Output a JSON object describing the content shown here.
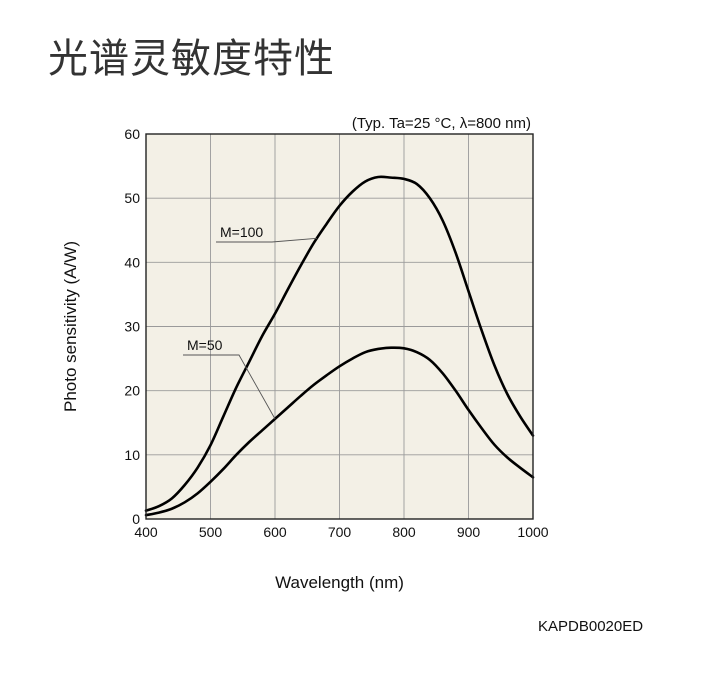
{
  "page": {
    "title": "光谱灵敏度特性",
    "doc_code": "KAPDB0020ED"
  },
  "chart_data": {
    "type": "line",
    "title": "",
    "condition_note": "(Typ. Ta=25 °C, λ=800 nm)",
    "xlabel": "Wavelength (nm)",
    "ylabel": "Photo sensitivity (A/W)",
    "xlim": [
      400,
      1000
    ],
    "ylim": [
      0,
      60
    ],
    "xticks": [
      400,
      500,
      600,
      700,
      800,
      900,
      1000
    ],
    "yticks": [
      0,
      10,
      20,
      30,
      40,
      50,
      60
    ],
    "grid": true,
    "plot_background": "#f3f0e6",
    "line_color": "#000000",
    "series": [
      {
        "name": "M=100",
        "x": [
          400,
          420,
          440,
          460,
          480,
          500,
          520,
          540,
          560,
          580,
          600,
          620,
          640,
          660,
          680,
          700,
          720,
          740,
          760,
          780,
          800,
          820,
          840,
          860,
          880,
          900,
          920,
          940,
          960,
          980,
          1000
        ],
        "y": [
          1.3,
          2.0,
          3.2,
          5.3,
          8.0,
          11.5,
          16.0,
          20.5,
          24.5,
          28.5,
          32.0,
          35.8,
          39.5,
          43.0,
          46.0,
          48.8,
          51.0,
          52.6,
          53.3,
          53.2,
          53.0,
          52.2,
          50.0,
          46.5,
          41.5,
          35.5,
          29.5,
          24.0,
          19.5,
          16.0,
          13.0
        ]
      },
      {
        "name": "M=50",
        "x": [
          400,
          420,
          440,
          460,
          480,
          500,
          520,
          540,
          560,
          580,
          600,
          620,
          640,
          660,
          680,
          700,
          720,
          740,
          760,
          780,
          800,
          820,
          840,
          860,
          880,
          900,
          920,
          940,
          960,
          980,
          1000
        ],
        "y": [
          0.6,
          1.0,
          1.6,
          2.6,
          4.0,
          5.8,
          7.8,
          10.0,
          12.0,
          13.8,
          15.6,
          17.4,
          19.2,
          20.9,
          22.4,
          23.8,
          25.0,
          26.0,
          26.5,
          26.7,
          26.6,
          26.0,
          24.8,
          22.7,
          20.0,
          17.0,
          14.2,
          11.6,
          9.6,
          8.0,
          6.5
        ]
      }
    ],
    "annotations": [
      {
        "text": "M=100",
        "series": "M=100",
        "points_to_x": 665
      },
      {
        "text": "M=50",
        "series": "M=50",
        "points_to_x": 600
      }
    ]
  }
}
